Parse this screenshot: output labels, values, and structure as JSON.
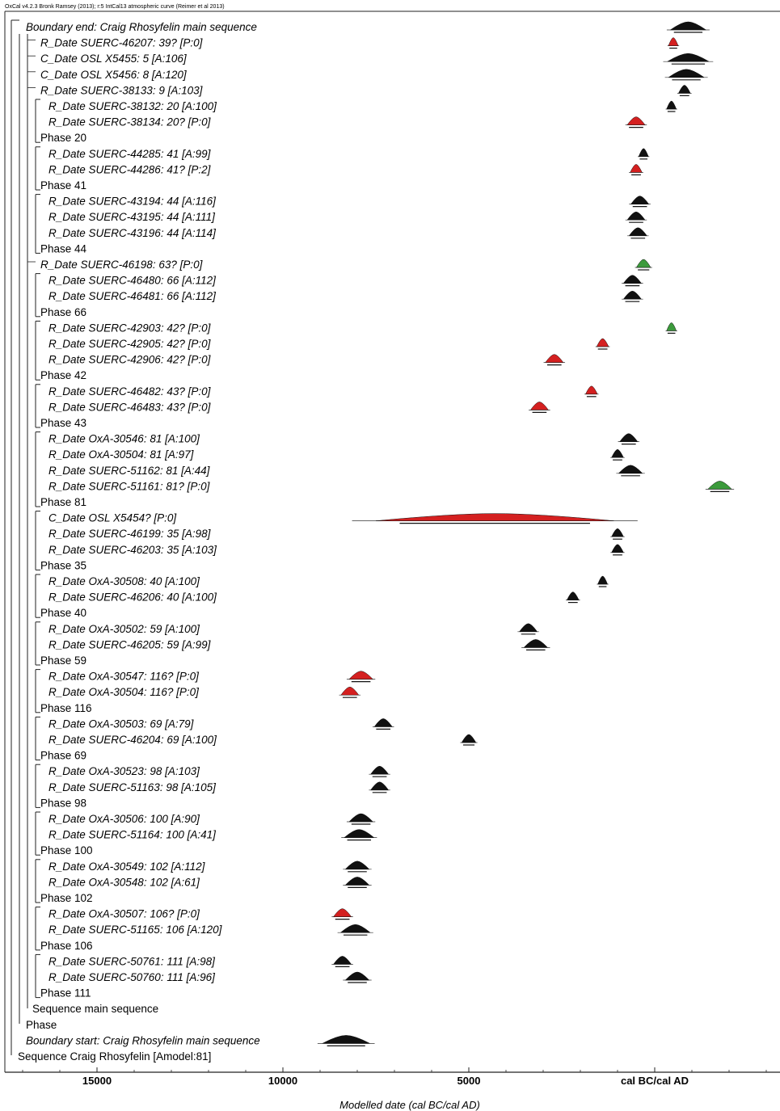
{
  "header": "OxCal v4.2.3 Bronk Ramsey (2013); r:5 IntCal13 atmospheric curve (Reimer et al 2013)",
  "chart_data": {
    "type": "range-plot",
    "xlabel": "Modelled date (cal BC/cal AD)",
    "x_ticks": [
      {
        "value": 15000,
        "label": "15000"
      },
      {
        "value": 10000,
        "label": "10000"
      },
      {
        "value": 5000,
        "label": "5000"
      },
      {
        "value": 0,
        "label": "cal BC/cal AD"
      }
    ],
    "xlim": [
      17500,
      -3500
    ],
    "rows": [
      {
        "label": "Boundary end: Craig Rhosyfelin main sequence",
        "kind": "boundary",
        "lvl": 0,
        "date": -900,
        "spread": 300,
        "color": "black"
      },
      {
        "label": "R_Date SUERC-46207: 39? [P:0]",
        "kind": "date",
        "lvl": 1,
        "date": -500,
        "spread": 60,
        "color": "red"
      },
      {
        "label": "C_Date OSL X5455: 5 [A:106]",
        "kind": "date",
        "lvl": 1,
        "date": -900,
        "spread": 350,
        "color": "black"
      },
      {
        "label": "C_Date OSL X5456: 8 [A:120]",
        "kind": "date",
        "lvl": 1,
        "date": -850,
        "spread": 300,
        "color": "black"
      },
      {
        "label": "R_Date SUERC-38133: 9 [A:103]",
        "kind": "date",
        "lvl": 1,
        "date": -800,
        "spread": 100,
        "color": "black"
      },
      {
        "label": "R_Date SUERC-38132: 20 [A:100]",
        "kind": "date",
        "lvl": 2,
        "date": -450,
        "spread": 80,
        "color": "black"
      },
      {
        "label": "R_Date SUERC-38134: 20? [P:0]",
        "kind": "date",
        "lvl": 2,
        "date": 500,
        "spread": 150,
        "color": "red"
      },
      {
        "label": "Phase 20",
        "kind": "phase",
        "lvl": 1
      },
      {
        "label": "R_Date SUERC-44285: 41 [A:99]",
        "kind": "date",
        "lvl": 2,
        "date": 300,
        "spread": 80,
        "color": "black"
      },
      {
        "label": "R_Date SUERC-44286: 41? [P:2]",
        "kind": "date",
        "lvl": 2,
        "date": 500,
        "spread": 100,
        "color": "red"
      },
      {
        "label": "Phase 41",
        "kind": "phase",
        "lvl": 1
      },
      {
        "label": "R_Date SUERC-43194: 44 [A:116]",
        "kind": "date",
        "lvl": 2,
        "date": 400,
        "spread": 150,
        "color": "black"
      },
      {
        "label": "R_Date SUERC-43195: 44 [A:111]",
        "kind": "date",
        "lvl": 2,
        "date": 500,
        "spread": 150,
        "color": "black"
      },
      {
        "label": "R_Date SUERC-43196: 44 [A:114]",
        "kind": "date",
        "lvl": 2,
        "date": 450,
        "spread": 150,
        "color": "black"
      },
      {
        "label": "Phase 44",
        "kind": "phase",
        "lvl": 1
      },
      {
        "label": "R_Date SUERC-46198: 63? [P:0]",
        "kind": "date",
        "lvl": 1,
        "date": 300,
        "spread": 120,
        "color": "green"
      },
      {
        "label": "R_Date SUERC-46480: 66 [A:112]",
        "kind": "date",
        "lvl": 2,
        "date": 600,
        "spread": 150,
        "color": "black"
      },
      {
        "label": "R_Date SUERC-46481: 66 [A:112]",
        "kind": "date",
        "lvl": 2,
        "date": 600,
        "spread": 150,
        "color": "black"
      },
      {
        "label": "Phase 66",
        "kind": "phase",
        "lvl": 1
      },
      {
        "label": "R_Date SUERC-42903: 42? [P:0]",
        "kind": "date",
        "lvl": 2,
        "date": -450,
        "spread": 80,
        "color": "green"
      },
      {
        "label": "R_Date SUERC-42905: 42? [P:0]",
        "kind": "date",
        "lvl": 2,
        "date": 1400,
        "spread": 100,
        "color": "red"
      },
      {
        "label": "R_Date SUERC-42906: 42? [P:0]",
        "kind": "date",
        "lvl": 2,
        "date": 2700,
        "spread": 150,
        "color": "red"
      },
      {
        "label": "Phase 42",
        "kind": "phase",
        "lvl": 1
      },
      {
        "label": "R_Date SUERC-46482: 43? [P:0]",
        "kind": "date",
        "lvl": 2,
        "date": 1700,
        "spread": 100,
        "color": "red"
      },
      {
        "label": "R_Date SUERC-46483: 43? [P:0]",
        "kind": "date",
        "lvl": 2,
        "date": 3100,
        "spread": 150,
        "color": "red"
      },
      {
        "label": "Phase 43",
        "kind": "phase",
        "lvl": 1
      },
      {
        "label": "R_Date OxA-30546: 81 [A:100]",
        "kind": "date",
        "lvl": 2,
        "date": 700,
        "spread": 150,
        "color": "black"
      },
      {
        "label": "R_Date OxA-30504: 81 [A:97]",
        "kind": "date",
        "lvl": 2,
        "date": 1000,
        "spread": 100,
        "color": "black"
      },
      {
        "label": "R_Date SUERC-51162: 81 [A:44]",
        "kind": "date",
        "lvl": 2,
        "date": 650,
        "spread": 200,
        "color": "black"
      },
      {
        "label": "R_Date SUERC-51161: 81? [P:0]",
        "kind": "date",
        "lvl": 2,
        "date": -1750,
        "spread": 200,
        "color": "green"
      },
      {
        "label": "Phase 81",
        "kind": "phase",
        "lvl": 1
      },
      {
        "label": "C_Date OSL X5454? [P:0]",
        "kind": "date",
        "lvl": 2,
        "date": 4300,
        "spread": 2000,
        "color": "red"
      },
      {
        "label": "R_Date SUERC-46199: 35 [A:98]",
        "kind": "date",
        "lvl": 2,
        "date": 1000,
        "spread": 100,
        "color": "black"
      },
      {
        "label": "R_Date SUERC-46203: 35 [A:103]",
        "kind": "date",
        "lvl": 2,
        "date": 1000,
        "spread": 100,
        "color": "black"
      },
      {
        "label": "Phase 35",
        "kind": "phase",
        "lvl": 1
      },
      {
        "label": "R_Date OxA-30508: 40 [A:100]",
        "kind": "date",
        "lvl": 2,
        "date": 1400,
        "spread": 80,
        "color": "black"
      },
      {
        "label": "R_Date SUERC-46206: 40 [A:100]",
        "kind": "date",
        "lvl": 2,
        "date": 2200,
        "spread": 100,
        "color": "black"
      },
      {
        "label": "Phase 40",
        "kind": "phase",
        "lvl": 1
      },
      {
        "label": "R_Date OxA-30502: 59 [A:100]",
        "kind": "date",
        "lvl": 2,
        "date": 3400,
        "spread": 150,
        "color": "black"
      },
      {
        "label": "R_Date SUERC-46205: 59 [A:99]",
        "kind": "date",
        "lvl": 2,
        "date": 3200,
        "spread": 200,
        "color": "black"
      },
      {
        "label": "Phase 59",
        "kind": "phase",
        "lvl": 1
      },
      {
        "label": "R_Date OxA-30547: 116? [P:0]",
        "kind": "date",
        "lvl": 2,
        "date": 7900,
        "spread": 200,
        "color": "red"
      },
      {
        "label": "R_Date OxA-30504: 116? [P:0]",
        "kind": "date",
        "lvl": 2,
        "date": 8200,
        "spread": 150,
        "color": "red"
      },
      {
        "label": "Phase 116",
        "kind": "phase",
        "lvl": 1
      },
      {
        "label": "R_Date OxA-30503: 69 [A:79]",
        "kind": "date",
        "lvl": 2,
        "date": 7300,
        "spread": 150,
        "color": "black"
      },
      {
        "label": "R_Date SUERC-46204: 69 [A:100]",
        "kind": "date",
        "lvl": 2,
        "date": 5000,
        "spread": 120,
        "color": "black"
      },
      {
        "label": "Phase 69",
        "kind": "phase",
        "lvl": 1
      },
      {
        "label": "R_Date OxA-30523: 98 [A:103]",
        "kind": "date",
        "lvl": 2,
        "date": 7400,
        "spread": 150,
        "color": "black"
      },
      {
        "label": "R_Date SUERC-51163: 98 [A:105]",
        "kind": "date",
        "lvl": 2,
        "date": 7400,
        "spread": 150,
        "color": "black"
      },
      {
        "label": "Phase 98",
        "kind": "phase",
        "lvl": 1
      },
      {
        "label": "R_Date OxA-30506: 100 [A:90]",
        "kind": "date",
        "lvl": 2,
        "date": 7900,
        "spread": 200,
        "color": "black"
      },
      {
        "label": "R_Date SUERC-51164: 100 [A:41]",
        "kind": "date",
        "lvl": 2,
        "date": 7950,
        "spread": 250,
        "color": "black"
      },
      {
        "label": "Phase 100",
        "kind": "phase",
        "lvl": 1
      },
      {
        "label": "R_Date OxA-30549: 102 [A:112]",
        "kind": "date",
        "lvl": 2,
        "date": 8000,
        "spread": 200,
        "color": "black"
      },
      {
        "label": "R_Date OxA-30548: 102 [A:61]",
        "kind": "date",
        "lvl": 2,
        "date": 8000,
        "spread": 200,
        "color": "black"
      },
      {
        "label": "Phase 102",
        "kind": "phase",
        "lvl": 1
      },
      {
        "label": "R_Date OxA-30507: 106? [P:0]",
        "kind": "date",
        "lvl": 2,
        "date": 8400,
        "spread": 150,
        "color": "red"
      },
      {
        "label": "R_Date SUERC-51165: 106 [A:120]",
        "kind": "date",
        "lvl": 2,
        "date": 8050,
        "spread": 250,
        "color": "black"
      },
      {
        "label": "Phase 106",
        "kind": "phase",
        "lvl": 1
      },
      {
        "label": "R_Date SUERC-50761: 111 [A:98]",
        "kind": "date",
        "lvl": 2,
        "date": 8400,
        "spread": 150,
        "color": "black"
      },
      {
        "label": "R_Date SUERC-50760: 111 [A:96]",
        "kind": "date",
        "lvl": 2,
        "date": 8000,
        "spread": 200,
        "color": "black"
      },
      {
        "label": "Phase 111",
        "kind": "phase",
        "lvl": 1
      },
      {
        "label": "Sequence main sequence",
        "kind": "sequence",
        "lvl": 1
      },
      {
        "label": "Phase",
        "kind": "phase",
        "lvl": 0
      },
      {
        "label": "Boundary start: Craig Rhosyfelin main sequence",
        "kind": "boundary",
        "lvl": 0,
        "date": 8300,
        "spread": 400,
        "color": "black"
      },
      {
        "label": "Sequence Craig Rhosyfelin [Amodel:81]",
        "kind": "sequence",
        "lvl": 0
      }
    ],
    "colors": {
      "black": "#111111",
      "red": "#d42020",
      "green": "#3c9a3c",
      "frame": "#222222"
    }
  }
}
